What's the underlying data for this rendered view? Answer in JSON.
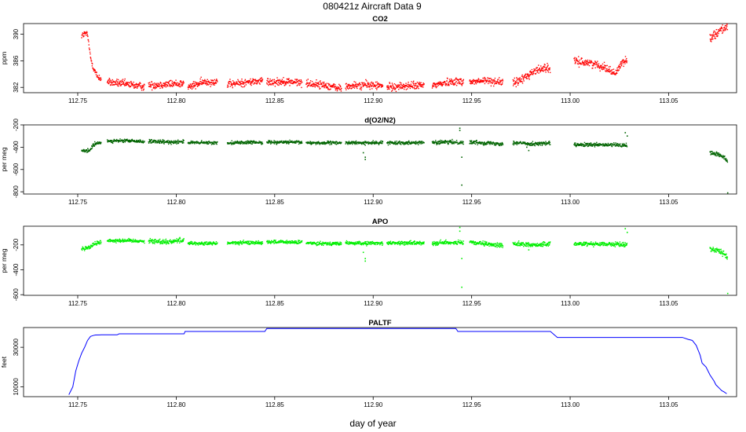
{
  "figure": {
    "title": "080421z   Aircraft Data 9",
    "xlabel": "day of year"
  },
  "chart_data": [
    {
      "type": "scatter",
      "title": "CO2",
      "ylabel": "ppm",
      "color": "#ff0000",
      "xlim": [
        112.7225,
        113.0845
      ],
      "ylim": [
        381.2,
        391.6
      ],
      "xticks": [
        112.75,
        112.8,
        112.85,
        112.9,
        112.95,
        113.0,
        113.05
      ],
      "xtick_labels": [
        "112.75",
        "112.80",
        "112.85",
        "112.90",
        "112.95",
        "113.00",
        "113.05"
      ],
      "yticks": [
        382,
        386,
        390
      ],
      "ytick_labels": [
        "382",
        "386",
        "390"
      ],
      "segments": [
        {
          "points": [
            [
              112.752,
              389.8
            ],
            [
              112.754,
              390.1
            ],
            [
              112.755,
              389.9
            ],
            [
              112.7565,
              386.5
            ],
            [
              112.758,
              384.9
            ],
            [
              112.76,
              383.6
            ],
            [
              112.762,
              383.3
            ]
          ],
          "noise": 0.35
        },
        {
          "points": [
            [
              112.765,
              382.8
            ],
            [
              112.774,
              382.5
            ],
            [
              112.784,
              382.1
            ]
          ],
          "noise": 0.4
        },
        {
          "points": [
            [
              112.786,
              382.3
            ],
            [
              112.796,
              382.5
            ],
            [
              112.804,
              382.6
            ]
          ],
          "noise": 0.4
        },
        {
          "points": [
            [
              112.806,
              382.0
            ],
            [
              112.814,
              382.8
            ],
            [
              112.821,
              382.9
            ]
          ],
          "noise": 0.4
        },
        {
          "points": [
            [
              112.826,
              382.4
            ],
            [
              112.834,
              382.7
            ],
            [
              112.844,
              383.0
            ]
          ],
          "noise": 0.4
        },
        {
          "points": [
            [
              112.846,
              382.8
            ],
            [
              112.855,
              382.9
            ],
            [
              112.864,
              382.7
            ]
          ],
          "noise": 0.4
        },
        {
          "points": [
            [
              112.866,
              382.6
            ],
            [
              112.876,
              382.3
            ],
            [
              112.884,
              381.8
            ]
          ],
          "noise": 0.4
        },
        {
          "points": [
            [
              112.886,
              382.1
            ],
            [
              112.896,
              382.4
            ],
            [
              112.905,
              382.2
            ]
          ],
          "noise": 0.4
        },
        {
          "points": [
            [
              112.907,
              382.0
            ],
            [
              112.916,
              382.2
            ],
            [
              112.926,
              382.3
            ]
          ],
          "noise": 0.4
        },
        {
          "points": [
            [
              112.93,
              382.3
            ],
            [
              112.94,
              382.9
            ],
            [
              112.946,
              382.9
            ]
          ],
          "noise": 0.4
        },
        {
          "points": [
            [
              112.949,
              382.8
            ],
            [
              112.958,
              383.0
            ],
            [
              112.966,
              382.8
            ]
          ],
          "noise": 0.4
        },
        {
          "points": [
            [
              112.971,
              382.5
            ],
            [
              112.976,
              383.3
            ],
            [
              112.981,
              384.3
            ],
            [
              112.987,
              385.0
            ],
            [
              112.99,
              384.7
            ]
          ],
          "noise": 0.45
        },
        {
          "points": [
            [
              113.002,
              385.9
            ],
            [
              113.01,
              385.7
            ],
            [
              113.018,
              385.0
            ],
            [
              113.023,
              384.0
            ],
            [
              113.026,
              385.7
            ],
            [
              113.029,
              386.0
            ]
          ],
          "noise": 0.4
        },
        {
          "points": [
            [
              113.071,
              389.5
            ],
            [
              113.074,
              390.1
            ],
            [
              113.077,
              390.8
            ],
            [
              113.08,
              391.1
            ]
          ],
          "noise": 0.45
        }
      ]
    },
    {
      "type": "scatter",
      "title": "d(O2/N2)",
      "ylabel": "per meg",
      "color": "#006400",
      "xlim": [
        112.7225,
        113.0845
      ],
      "ylim": [
        -820,
        -200
      ],
      "xticks": [
        112.75,
        112.8,
        112.85,
        112.9,
        112.95,
        113.0,
        113.05
      ],
      "xtick_labels": [
        "112.75",
        "112.80",
        "112.85",
        "112.90",
        "112.95",
        "113.00",
        "113.05"
      ],
      "yticks": [
        -800,
        -600,
        -400,
        -200
      ],
      "ytick_labels": [
        "-800",
        "-600",
        "-400",
        "-200"
      ],
      "segments": [
        {
          "points": [
            [
              112.752,
              -440
            ],
            [
              112.756,
              -430
            ],
            [
              112.758,
              -380
            ],
            [
              112.762,
              -355
            ]
          ],
          "noise": 12
        },
        {
          "points": [
            [
              112.765,
              -345
            ],
            [
              112.775,
              -342
            ],
            [
              112.784,
              -350
            ]
          ],
          "noise": 10
        },
        {
          "points": [
            [
              112.786,
              -350
            ],
            [
              112.796,
              -355
            ],
            [
              112.804,
              -348
            ]
          ],
          "noise": 12
        },
        {
          "points": [
            [
              112.806,
              -360
            ],
            [
              112.814,
              -360
            ],
            [
              112.821,
              -362
            ]
          ],
          "noise": 10
        },
        {
          "points": [
            [
              112.826,
              -360
            ],
            [
              112.835,
              -358
            ],
            [
              112.844,
              -358
            ]
          ],
          "noise": 10
        },
        {
          "points": [
            [
              112.846,
              -355
            ],
            [
              112.855,
              -355
            ],
            [
              112.864,
              -358
            ]
          ],
          "noise": 10
        },
        {
          "points": [
            [
              112.866,
              -360
            ],
            [
              112.876,
              -362
            ],
            [
              112.884,
              -360
            ]
          ],
          "noise": 10
        },
        {
          "points": [
            [
              112.886,
              -360
            ],
            [
              112.896,
              -362
            ],
            [
              112.905,
              -360
            ]
          ],
          "noise": 10
        },
        {
          "points": [
            [
              112.907,
              -360
            ],
            [
              112.916,
              -360
            ],
            [
              112.926,
              -358
            ]
          ],
          "noise": 10
        },
        {
          "points": [
            [
              112.93,
              -358
            ],
            [
              112.94,
              -355
            ],
            [
              112.946,
              -358
            ]
          ],
          "noise": 12
        },
        {
          "points": [
            [
              112.949,
              -355
            ],
            [
              112.958,
              -362
            ],
            [
              112.966,
              -370
            ]
          ],
          "noise": 12
        },
        {
          "points": [
            [
              112.971,
              -360
            ],
            [
              112.981,
              -370
            ],
            [
              112.99,
              -365
            ]
          ],
          "noise": 12
        },
        {
          "points": [
            [
              113.002,
              -380
            ],
            [
              113.014,
              -380
            ],
            [
              113.023,
              -380
            ],
            [
              113.029,
              -385
            ]
          ],
          "noise": 12
        },
        {
          "points": [
            [
              113.071,
              -450
            ],
            [
              113.075,
              -465
            ],
            [
              113.079,
              -500
            ],
            [
              113.08,
              -530
            ]
          ],
          "noise": 15
        }
      ],
      "outliers": [
        [
          112.895,
          -450
        ],
        [
          112.896,
          -490
        ],
        [
          112.896,
          -510
        ],
        [
          112.944,
          -230
        ],
        [
          112.944,
          -250
        ],
        [
          112.945,
          -490
        ],
        [
          112.945,
          -740
        ],
        [
          112.978,
          -400
        ],
        [
          112.979,
          -430
        ],
        [
          113.028,
          -270
        ],
        [
          113.029,
          -300
        ],
        [
          113.08,
          -810
        ]
      ]
    },
    {
      "type": "scatter",
      "title": "APO",
      "ylabel": "per meg",
      "color": "#00ee00",
      "xlim": [
        112.7225,
        113.0845
      ],
      "ylim": [
        -605,
        -50
      ],
      "xticks": [
        112.75,
        112.8,
        112.85,
        112.9,
        112.95,
        113.0,
        113.05
      ],
      "xtick_labels": [
        "112.75",
        "112.80",
        "112.85",
        "112.90",
        "112.95",
        "113.00",
        "113.05"
      ],
      "yticks": [
        -600,
        -400,
        -200
      ],
      "ytick_labels": [
        "-600",
        "-400",
        "-200"
      ],
      "segments": [
        {
          "points": [
            [
              112.752,
              -230
            ],
            [
              112.756,
              -220
            ],
            [
              112.758,
              -195
            ],
            [
              112.762,
              -175
            ]
          ],
          "noise": 12
        },
        {
          "points": [
            [
              112.765,
              -165
            ],
            [
              112.775,
              -165
            ],
            [
              112.784,
              -170
            ]
          ],
          "noise": 10
        },
        {
          "points": [
            [
              112.786,
              -170
            ],
            [
              112.796,
              -175
            ],
            [
              112.804,
              -160
            ]
          ],
          "noise": 14
        },
        {
          "points": [
            [
              112.806,
              -185
            ],
            [
              112.814,
              -190
            ],
            [
              112.821,
              -188
            ]
          ],
          "noise": 10
        },
        {
          "points": [
            [
              112.826,
              -185
            ],
            [
              112.835,
              -182
            ],
            [
              112.844,
              -182
            ]
          ],
          "noise": 10
        },
        {
          "points": [
            [
              112.846,
              -175
            ],
            [
              112.855,
              -178
            ],
            [
              112.864,
              -180
            ]
          ],
          "noise": 10
        },
        {
          "points": [
            [
              112.866,
              -185
            ],
            [
              112.876,
              -188
            ],
            [
              112.884,
              -190
            ]
          ],
          "noise": 10
        },
        {
          "points": [
            [
              112.886,
              -185
            ],
            [
              112.896,
              -188
            ],
            [
              112.905,
              -185
            ]
          ],
          "noise": 10
        },
        {
          "points": [
            [
              112.907,
              -185
            ],
            [
              112.916,
              -185
            ],
            [
              112.926,
              -185
            ]
          ],
          "noise": 10
        },
        {
          "points": [
            [
              112.93,
              -185
            ],
            [
              112.94,
              -180
            ],
            [
              112.946,
              -185
            ]
          ],
          "noise": 12
        },
        {
          "points": [
            [
              112.949,
              -180
            ],
            [
              112.958,
              -195
            ],
            [
              112.966,
              -205
            ]
          ],
          "noise": 12
        },
        {
          "points": [
            [
              112.971,
              -190
            ],
            [
              112.981,
              -200
            ],
            [
              112.99,
              -195
            ]
          ],
          "noise": 12
        },
        {
          "points": [
            [
              113.002,
              -190
            ],
            [
              113.014,
              -192
            ],
            [
              113.023,
              -195
            ],
            [
              113.029,
              -200
            ]
          ],
          "noise": 12
        },
        {
          "points": [
            [
              113.071,
              -230
            ],
            [
              113.075,
              -245
            ],
            [
              113.079,
              -280
            ],
            [
              113.08,
              -310
            ]
          ],
          "noise": 15
        }
      ],
      "outliers": [
        [
          112.895,
          -260
        ],
        [
          112.896,
          -310
        ],
        [
          112.896,
          -330
        ],
        [
          112.944,
          -60
        ],
        [
          112.944,
          -90
        ],
        [
          112.945,
          -310
        ],
        [
          112.945,
          -540
        ],
        [
          112.978,
          -210
        ],
        [
          112.979,
          -240
        ],
        [
          113.028,
          -70
        ],
        [
          113.029,
          -100
        ],
        [
          113.08,
          -590
        ]
      ]
    },
    {
      "type": "line",
      "title": "PALTF",
      "ylabel": "feet",
      "color": "#0000ff",
      "xlim": [
        112.7225,
        113.0845
      ],
      "ylim": [
        5000,
        40000
      ],
      "xticks": [
        112.75,
        112.8,
        112.85,
        112.9,
        112.95,
        113.0,
        113.05
      ],
      "xtick_labels": [
        "112.75",
        "112.80",
        "112.85",
        "112.90",
        "112.95",
        "113.00",
        "113.05"
      ],
      "yticks": [
        10000,
        30000
      ],
      "ytick_labels": [
        "10000",
        "30000"
      ],
      "x": [
        112.7455,
        112.7475,
        112.749,
        112.7505,
        112.752,
        112.7535,
        112.755,
        112.7565,
        112.758,
        112.759,
        112.762,
        112.77,
        112.771,
        112.804,
        112.8045,
        112.845,
        112.846,
        112.942,
        112.943,
        112.99,
        112.9935,
        113.057,
        113.06,
        113.062,
        113.064,
        113.066,
        113.067,
        113.069,
        113.071,
        113.073,
        113.074,
        113.076,
        113.077,
        113.078,
        113.0795
      ],
      "values": [
        6000,
        10000,
        18000,
        23000,
        27000,
        30000,
        33500,
        35500,
        36000,
        36200,
        36300,
        36300,
        36800,
        36800,
        38000,
        38000,
        39500,
        39500,
        38000,
        38000,
        35000,
        35000,
        34000,
        33500,
        31000,
        26000,
        22000,
        20000,
        16000,
        13000,
        11000,
        9000,
        8000,
        7500,
        6500
      ]
    }
  ]
}
